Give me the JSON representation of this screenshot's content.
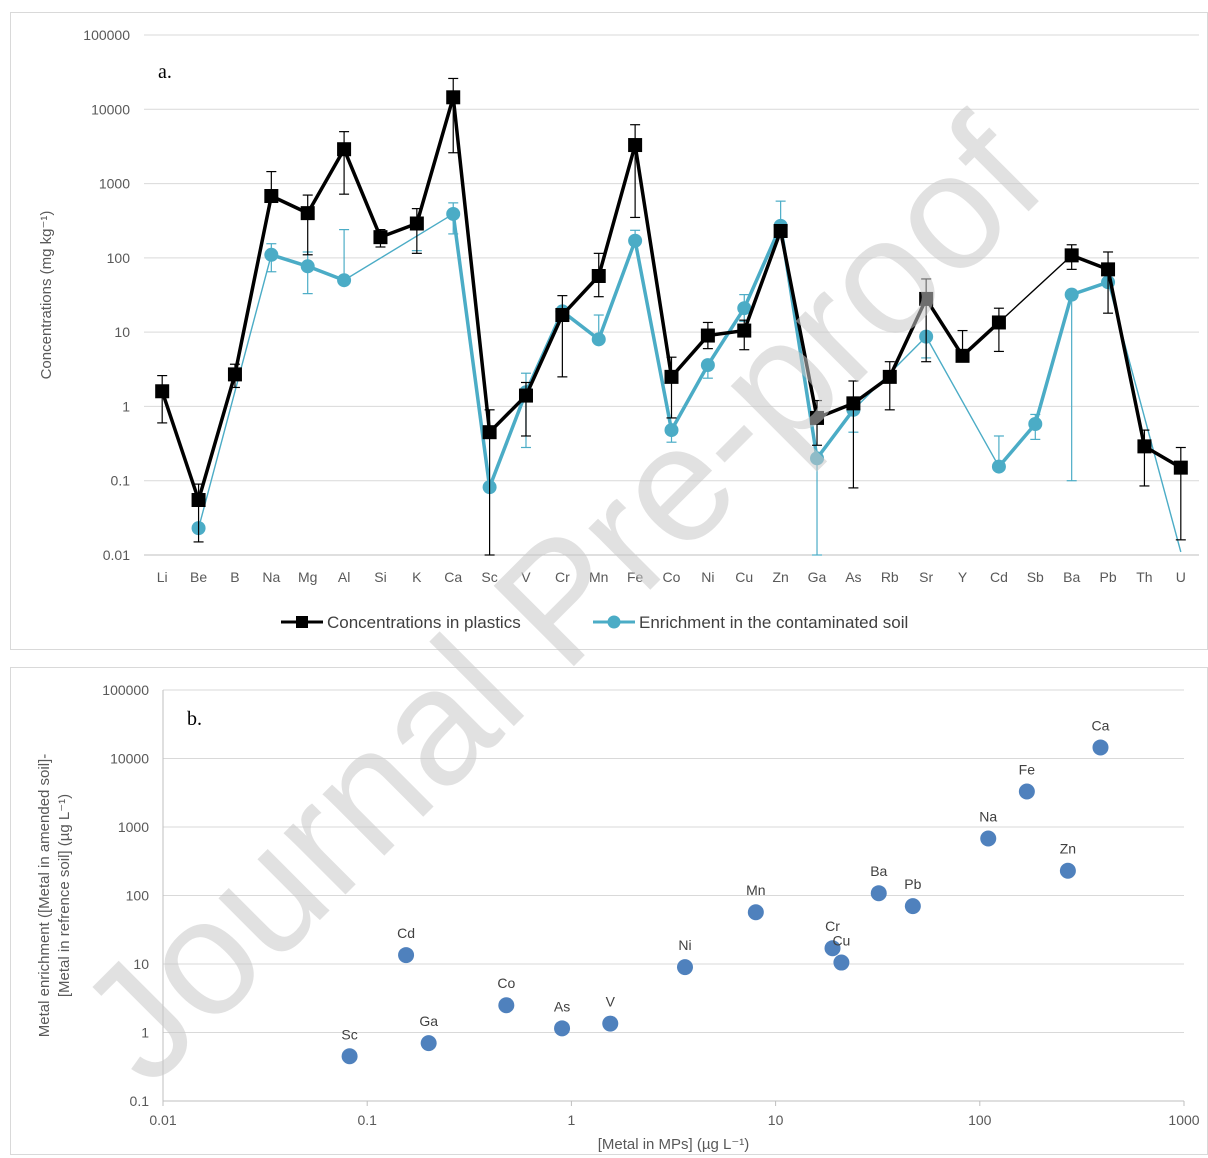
{
  "watermark": "Journal Pre-proof",
  "chart_data": [
    {
      "type": "line",
      "panel_label": "a.",
      "xlabel": "",
      "ylabel": "Concentrations (mg kg⁻¹)",
      "y_scale": "log",
      "ylim": [
        0.01,
        100000
      ],
      "y_ticks": [
        "0.01",
        "0.1",
        "1",
        "10",
        "100",
        "1000",
        "10000",
        "100000"
      ],
      "grid": true,
      "legend_position": "bottom",
      "categories": [
        "Li",
        "Be",
        "B",
        "Na",
        "Mg",
        "Al",
        "Si",
        "K",
        "Ca",
        "Sc",
        "V",
        "Cr",
        "Mn",
        "Fe",
        "Co",
        "Ni",
        "Cu",
        "Zn",
        "Ga",
        "As",
        "Rb",
        "Sr",
        "Y",
        "Cd",
        "Sb",
        "Ba",
        "Pb",
        "Th",
        "U"
      ],
      "series": [
        {
          "name": "Concentrations in plastics",
          "color": "#000000",
          "marker": "square",
          "values": [
            1.6,
            0.055,
            2.7,
            680,
            400,
            2900,
            190,
            290,
            14500,
            0.45,
            1.4,
            17,
            57,
            3300,
            2.5,
            9,
            10.5,
            230,
            0.7,
            1.1,
            2.5,
            28,
            4.8,
            13.5,
            null,
            108,
            70,
            0.29,
            0.15
          ],
          "error_high": [
            2.6,
            0.09,
            3.7,
            1450,
            700,
            5000,
            240,
            460,
            26000,
            0.9,
            2.1,
            31,
            115,
            6200,
            4.6,
            13.5,
            14.5,
            270,
            1.2,
            2.2,
            4.0,
            52,
            10.5,
            21,
            null,
            150,
            120,
            0.48,
            0.28
          ],
          "error_low": [
            0.6,
            0.015,
            1.8,
            null,
            110,
            720,
            140,
            115,
            2600,
            0.01,
            0.4,
            2.5,
            30,
            350,
            0.7,
            6,
            5.8,
            200,
            0.3,
            0.08,
            0.9,
            4.0,
            null,
            5.5,
            null,
            70,
            18,
            0.085,
            0.016
          ]
        },
        {
          "name": "Enrichment in the contaminated soil",
          "color": "#4bacc6",
          "marker": "circle",
          "values": [
            null,
            0.023,
            null,
            110,
            77,
            50,
            null,
            null,
            390,
            0.082,
            1.55,
            19,
            8,
            170,
            0.48,
            3.6,
            21,
            270,
            0.2,
            0.9,
            null,
            8.7,
            null,
            0.155,
            0.58,
            32,
            47,
            null,
            null
          ],
          "error_high": [
            null,
            null,
            null,
            155,
            120,
            240,
            null,
            125,
            550,
            null,
            2.8,
            null,
            17,
            235,
            null,
            null,
            32,
            580,
            null,
            null,
            null,
            null,
            null,
            0.4,
            0.78,
            null,
            null,
            null,
            null
          ],
          "error_low": [
            null,
            null,
            null,
            65,
            33,
            null,
            null,
            null,
            210,
            null,
            0.28,
            null,
            null,
            null,
            0.33,
            2.4,
            14,
            null,
            0.01,
            0.45,
            null,
            4.5,
            null,
            null,
            0.36,
            0.1,
            null,
            null,
            null
          ],
          "trailing_line_to": {
            "category": "U",
            "value": 0.011
          }
        }
      ]
    },
    {
      "type": "scatter",
      "panel_label": "b.",
      "xlabel": "[Metal in MPs] (µg L⁻¹)",
      "ylabel_line1": "Metal enrichment ([Metal in amended  soil]-",
      "ylabel_line2": "[Metal in refrence soil] (µg L⁻¹)",
      "x_scale": "log",
      "y_scale": "log",
      "xlim": [
        0.01,
        1000
      ],
      "ylim": [
        0.1,
        100000
      ],
      "x_ticks": [
        "0.01",
        "0.1",
        "1",
        "10",
        "100",
        "1000"
      ],
      "y_ticks": [
        "0.1",
        "1",
        "10",
        "100",
        "1000",
        "10000",
        "100000"
      ],
      "grid": true,
      "color": "#4f81bd",
      "points": [
        {
          "label": "Sc",
          "x": 0.082,
          "y": 0.45
        },
        {
          "label": "Cd",
          "x": 0.155,
          "y": 13.5
        },
        {
          "label": "Ga",
          "x": 0.2,
          "y": 0.7
        },
        {
          "label": "Co",
          "x": 0.48,
          "y": 2.5
        },
        {
          "label": "As",
          "x": 0.9,
          "y": 1.15
        },
        {
          "label": "V",
          "x": 1.55,
          "y": 1.35
        },
        {
          "label": "Ni",
          "x": 3.6,
          "y": 9
        },
        {
          "label": "Mn",
          "x": 8,
          "y": 57
        },
        {
          "label": "Cr",
          "x": 19,
          "y": 17
        },
        {
          "label": "Cu",
          "x": 21,
          "y": 10.5
        },
        {
          "label": "Ba",
          "x": 32,
          "y": 108
        },
        {
          "label": "Pb",
          "x": 47,
          "y": 70
        },
        {
          "label": "Na",
          "x": 110,
          "y": 680
        },
        {
          "label": "Fe",
          "x": 170,
          "y": 3300
        },
        {
          "label": "Zn",
          "x": 270,
          "y": 230
        },
        {
          "label": "Ca",
          "x": 390,
          "y": 14500
        }
      ]
    }
  ]
}
